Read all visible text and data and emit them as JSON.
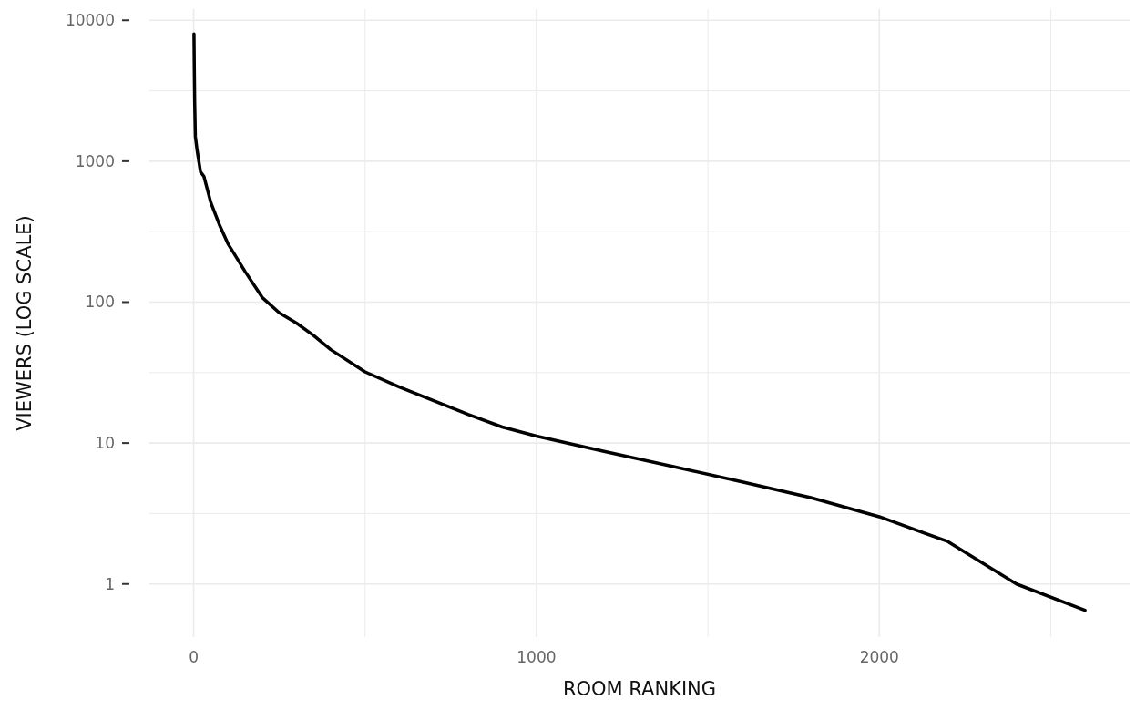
{
  "chart_data": {
    "type": "line",
    "xlabel": "ROOM RANKING",
    "ylabel": "VIEWERS (LOG SCALE)",
    "log": "y",
    "grid": true,
    "xlim": [
      -129,
      2730
    ],
    "ylim": [
      0.42,
      12000
    ],
    "xticks": [
      0,
      {
        "value": 500,
        "label": null
      },
      1000,
      {
        "value": 1500,
        "label": null
      },
      2000,
      {
        "value": 2500,
        "label": null
      }
    ],
    "yticks": [
      1,
      {
        "value": 3.1623,
        "label": null
      },
      10,
      {
        "value": 31.623,
        "label": null
      },
      100,
      {
        "value": 316.23,
        "label": null
      },
      1000,
      {
        "value": 3162.3,
        "label": null
      },
      10000
    ],
    "series": [
      {
        "color": "#000000",
        "x": [
          1,
          2,
          3,
          5,
          10,
          20,
          30,
          50,
          75,
          100,
          150,
          200,
          250,
          300,
          350,
          400,
          500,
          600,
          700,
          800,
          900,
          1000,
          1200,
          1400,
          1600,
          1800,
          2000,
          2200,
          2400,
          2600
        ],
        "values": [
          8000,
          4400,
          2660,
          1500,
          1200,
          840,
          780,
          510,
          355,
          260,
          165,
          108,
          84,
          71,
          58,
          46,
          32,
          25,
          20,
          16,
          13,
          11.2,
          8.7,
          6.8,
          5.3,
          4.1,
          3,
          2,
          1,
          0.65
        ]
      }
    ]
  }
}
